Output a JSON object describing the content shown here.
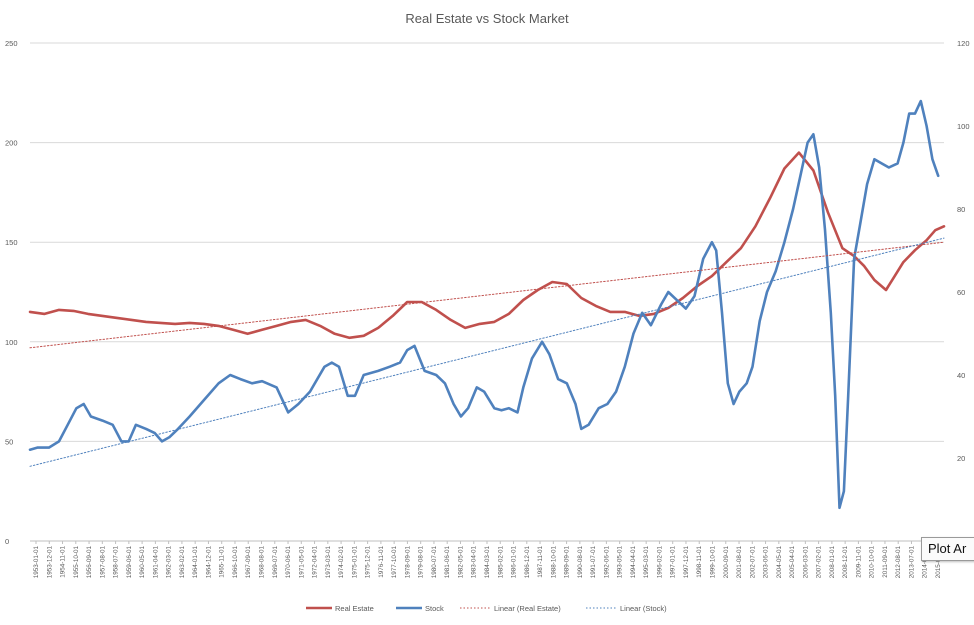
{
  "chart_data": {
    "type": "line",
    "title": "Real Estate vs Stock Market",
    "xlabel": "",
    "ylabel": "",
    "y_left": {
      "ylim": [
        0,
        250
      ],
      "ticks": [
        "0",
        "50",
        "100",
        "150",
        "200",
        "250"
      ]
    },
    "y_right": {
      "ylim": [
        0,
        120
      ],
      "ticks": [
        "20",
        "40",
        "60",
        "80",
        "100",
        "120"
      ]
    },
    "grid": "horizontal",
    "legend_position": "bottom",
    "x_ticks": [
      "1953-01-01",
      "1953-12-01",
      "1954-11-01",
      "1955-10-01",
      "1956-09-01",
      "1957-08-01",
      "1958-07-01",
      "1959-06-01",
      "1960-05-01",
      "1961-04-01",
      "1962-03-01",
      "1963-02-01",
      "1964-01-01",
      "1964-12-01",
      "1965-11-01",
      "1966-10-01",
      "1967-09-01",
      "1968-08-01",
      "1969-07-01",
      "1970-06-01",
      "1971-05-01",
      "1972-04-01",
      "1973-03-01",
      "1974-02-01",
      "1975-01-01",
      "1975-12-01",
      "1976-11-01",
      "1977-10-01",
      "1978-09-01",
      "1979-08-01",
      "1980-07-01",
      "1981-06-01",
      "1982-05-01",
      "1983-04-01",
      "1984-03-01",
      "1985-02-01",
      "1986-01-01",
      "1986-12-01",
      "1987-11-01",
      "1988-10-01",
      "1989-09-01",
      "1990-08-01",
      "1991-07-01",
      "1992-06-01",
      "1993-05-01",
      "1994-04-01",
      "1995-03-01",
      "1996-02-01",
      "1997-01-01",
      "1997-12-01",
      "1998-11-01",
      "1999-10-01",
      "2000-09-01",
      "2001-08-01",
      "2002-07-01",
      "2003-06-01",
      "2004-05-01",
      "2005-04-01",
      "2006-03-01",
      "2007-02-01",
      "2008-01-01",
      "2008-12-01",
      "2009-11-01",
      "2010-10-01",
      "2011-09-01",
      "2012-08-01",
      "2013-07-01",
      "2014-06-01",
      "2015-05-01"
    ],
    "series": [
      {
        "name": "Real Estate",
        "axis": "left",
        "color": "#c0504d",
        "points": [
          [
            1953.0,
            115
          ],
          [
            1954.0,
            114
          ],
          [
            1955.0,
            116
          ],
          [
            1956.0,
            115.5
          ],
          [
            1957.0,
            114
          ],
          [
            1958.0,
            113
          ],
          [
            1959.0,
            112
          ],
          [
            1960.0,
            111
          ],
          [
            1961.0,
            110
          ],
          [
            1962.0,
            109.5
          ],
          [
            1963.0,
            109
          ],
          [
            1964.0,
            109.5
          ],
          [
            1965.0,
            109
          ],
          [
            1966.0,
            108
          ],
          [
            1967.0,
            106
          ],
          [
            1968.0,
            104
          ],
          [
            1969.0,
            106
          ],
          [
            1970.0,
            108
          ],
          [
            1971.0,
            110
          ],
          [
            1972.0,
            111
          ],
          [
            1973.0,
            108
          ],
          [
            1974.0,
            104
          ],
          [
            1975.0,
            102
          ],
          [
            1976.0,
            103
          ],
          [
            1977.0,
            107
          ],
          [
            1978.0,
            113
          ],
          [
            1979.0,
            120
          ],
          [
            1980.0,
            120
          ],
          [
            1981.0,
            116
          ],
          [
            1982.0,
            111
          ],
          [
            1983.0,
            107
          ],
          [
            1984.0,
            109
          ],
          [
            1985.0,
            110
          ],
          [
            1986.0,
            114
          ],
          [
            1987.0,
            121
          ],
          [
            1988.0,
            126
          ],
          [
            1989.0,
            130
          ],
          [
            1990.0,
            129
          ],
          [
            1991.0,
            122
          ],
          [
            1992.0,
            118
          ],
          [
            1993.0,
            115
          ],
          [
            1994.0,
            115
          ],
          [
            1995.0,
            113
          ],
          [
            1996.0,
            114
          ],
          [
            1997.0,
            117
          ],
          [
            1998.0,
            122
          ],
          [
            1999.0,
            128
          ],
          [
            2000.0,
            133
          ],
          [
            2001.0,
            140
          ],
          [
            2002.0,
            147
          ],
          [
            2003.0,
            158
          ],
          [
            2004.0,
            172
          ],
          [
            2005.0,
            187
          ],
          [
            2006.0,
            195
          ],
          [
            2007.0,
            186
          ],
          [
            2008.0,
            165
          ],
          [
            2009.0,
            147
          ],
          [
            2009.8,
            143
          ],
          [
            2010.5,
            138
          ],
          [
            2011.2,
            131
          ],
          [
            2012.0,
            126
          ],
          [
            2012.6,
            133
          ],
          [
            2013.2,
            140
          ],
          [
            2014.0,
            146
          ],
          [
            2014.8,
            151
          ],
          [
            2015.4,
            156
          ],
          [
            2016.0,
            158
          ]
        ]
      },
      {
        "name": "Stock",
        "axis": "right",
        "color": "#4f81bd",
        "points": [
          [
            1953.0,
            22
          ],
          [
            1953.5,
            22.5
          ],
          [
            1954.3,
            22.5
          ],
          [
            1955.0,
            24
          ],
          [
            1955.6,
            28
          ],
          [
            1956.2,
            32
          ],
          [
            1956.7,
            33
          ],
          [
            1957.2,
            30
          ],
          [
            1958.0,
            29
          ],
          [
            1958.7,
            28
          ],
          [
            1959.3,
            24
          ],
          [
            1959.8,
            24
          ],
          [
            1960.3,
            28
          ],
          [
            1961.0,
            27
          ],
          [
            1961.6,
            26
          ],
          [
            1962.1,
            24
          ],
          [
            1962.6,
            25
          ],
          [
            1963.2,
            27
          ],
          [
            1964.0,
            30
          ],
          [
            1965.0,
            34
          ],
          [
            1966.0,
            38
          ],
          [
            1966.8,
            40
          ],
          [
            1967.5,
            39
          ],
          [
            1968.3,
            38
          ],
          [
            1969.0,
            38.5
          ],
          [
            1970.0,
            37
          ],
          [
            1970.8,
            31
          ],
          [
            1971.5,
            33
          ],
          [
            1972.3,
            36
          ],
          [
            1973.3,
            42
          ],
          [
            1973.8,
            43
          ],
          [
            1974.3,
            42
          ],
          [
            1974.9,
            35
          ],
          [
            1975.4,
            35
          ],
          [
            1976.0,
            40
          ],
          [
            1977.0,
            41
          ],
          [
            1977.8,
            42
          ],
          [
            1978.5,
            43
          ],
          [
            1979.0,
            46
          ],
          [
            1979.5,
            47
          ],
          [
            1980.2,
            41
          ],
          [
            1981.0,
            40
          ],
          [
            1981.6,
            38
          ],
          [
            1982.2,
            33
          ],
          [
            1982.7,
            30
          ],
          [
            1983.2,
            32
          ],
          [
            1983.8,
            37
          ],
          [
            1984.3,
            36
          ],
          [
            1985.0,
            32
          ],
          [
            1985.5,
            31.5
          ],
          [
            1986.0,
            32
          ],
          [
            1986.6,
            31
          ],
          [
            1987.0,
            37
          ],
          [
            1987.6,
            44
          ],
          [
            1988.3,
            48
          ],
          [
            1988.8,
            45
          ],
          [
            1989.4,
            39
          ],
          [
            1990.0,
            38
          ],
          [
            1990.6,
            33
          ],
          [
            1991.0,
            27
          ],
          [
            1991.5,
            28
          ],
          [
            1992.2,
            32
          ],
          [
            1992.8,
            33
          ],
          [
            1993.4,
            36
          ],
          [
            1994.0,
            42
          ],
          [
            1994.6,
            50
          ],
          [
            1995.2,
            55
          ],
          [
            1995.8,
            52
          ],
          [
            1996.5,
            57
          ],
          [
            1997.0,
            60
          ],
          [
            1997.6,
            58
          ],
          [
            1998.2,
            56
          ],
          [
            1998.8,
            59
          ],
          [
            1999.4,
            68
          ],
          [
            2000.0,
            72
          ],
          [
            2000.3,
            70
          ],
          [
            2000.7,
            55
          ],
          [
            2001.1,
            38
          ],
          [
            2001.5,
            33
          ],
          [
            2001.9,
            36
          ],
          [
            2002.4,
            38
          ],
          [
            2002.8,
            42
          ],
          [
            2003.3,
            53
          ],
          [
            2003.8,
            60
          ],
          [
            2004.4,
            65
          ],
          [
            2005.0,
            72
          ],
          [
            2005.6,
            80
          ],
          [
            2006.1,
            88
          ],
          [
            2006.6,
            96
          ],
          [
            2007.0,
            98
          ],
          [
            2007.4,
            90
          ],
          [
            2007.8,
            75
          ],
          [
            2008.2,
            55
          ],
          [
            2008.5,
            35
          ],
          [
            2008.8,
            8
          ],
          [
            2009.1,
            12
          ],
          [
            2009.4,
            35
          ],
          [
            2009.8,
            68
          ],
          [
            2010.2,
            76
          ],
          [
            2010.7,
            86
          ],
          [
            2011.2,
            92
          ],
          [
            2011.7,
            91
          ],
          [
            2012.2,
            90
          ],
          [
            2012.8,
            91
          ],
          [
            2013.2,
            96
          ],
          [
            2013.6,
            103
          ],
          [
            2014.0,
            103
          ],
          [
            2014.4,
            106
          ],
          [
            2014.8,
            100
          ],
          [
            2015.2,
            92
          ],
          [
            2015.6,
            88
          ]
        ]
      },
      {
        "name": "Linear (Real Estate)",
        "axis": "left",
        "color": "#c0504d",
        "dashed": true,
        "points": [
          [
            1953.0,
            97
          ],
          [
            2016.0,
            150
          ]
        ]
      },
      {
        "name": "Linear (Stock)",
        "axis": "right",
        "color": "#4f81bd",
        "dashed": true,
        "points": [
          [
            1953.0,
            18
          ],
          [
            2016.0,
            73
          ]
        ]
      }
    ]
  },
  "tooltip": {
    "text": "Plot Ar"
  }
}
